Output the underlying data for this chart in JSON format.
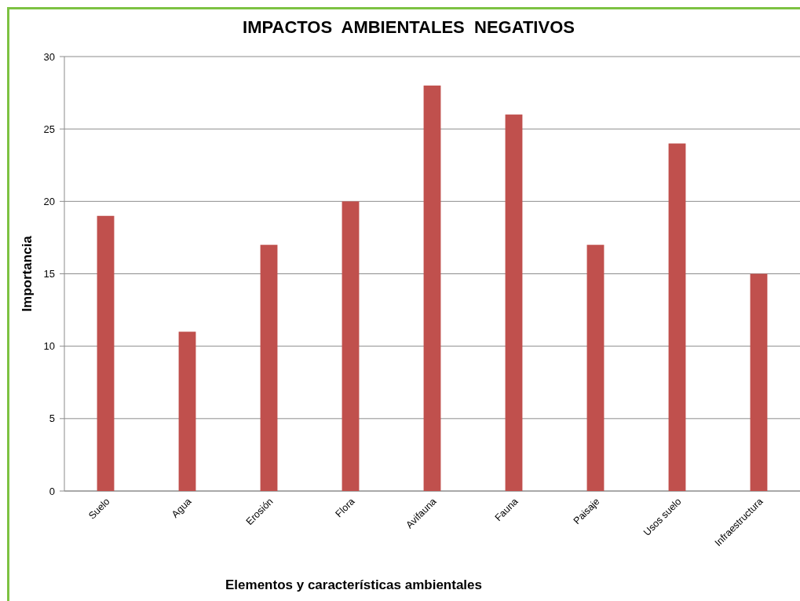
{
  "chart_data": {
    "type": "bar",
    "title": "IMPACTOS  AMBIENTALES  NEGATIVOS",
    "xlabel": "Elementos y características ambientales",
    "ylabel": "Importancia",
    "categories": [
      "Suelo",
      "Agua",
      "Erosión",
      "Flora",
      "Avifauna",
      "Fauna",
      "Paisaje",
      "Usos suelo",
      "Infraestructura"
    ],
    "values": [
      19,
      11,
      17,
      20,
      28,
      26,
      17,
      24,
      15
    ],
    "color": "#c0504d",
    "ylim": [
      0,
      30
    ],
    "yticks": [
      0,
      5,
      10,
      15,
      20,
      25,
      30
    ],
    "grid": "y"
  }
}
